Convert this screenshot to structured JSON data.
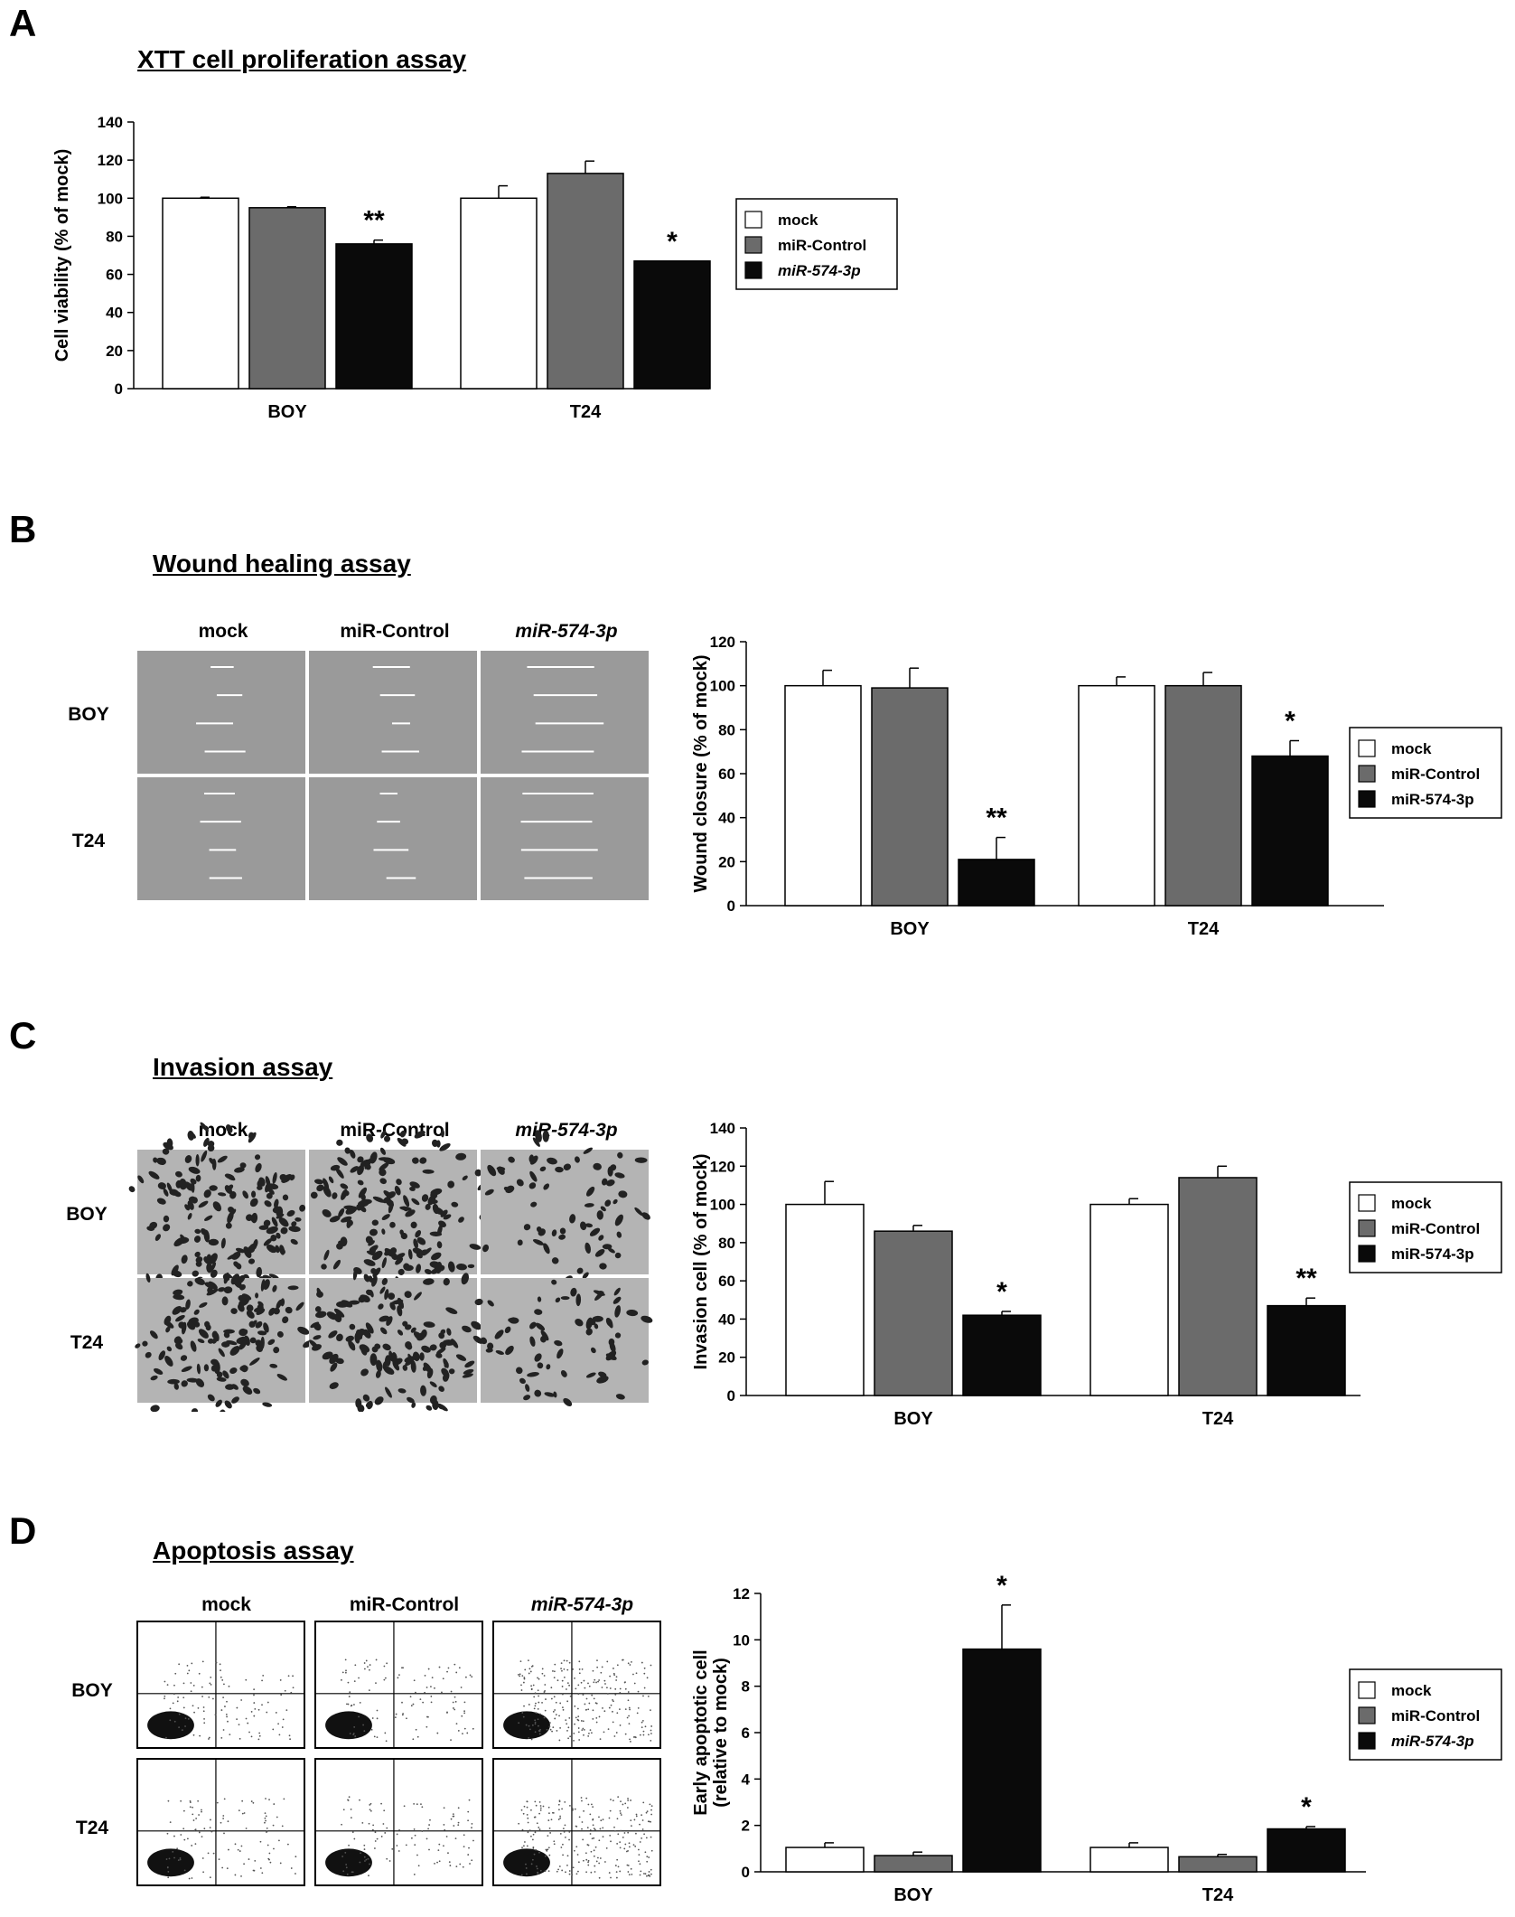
{
  "panels": [
    {
      "letter": "A",
      "title": "XTT cell proliferation assay"
    },
    {
      "letter": "B",
      "title": "Wound healing assay"
    },
    {
      "letter": "C",
      "title": "Invasion assay"
    },
    {
      "letter": "D",
      "title": "Apoptosis assay"
    }
  ],
  "image_grid": {
    "columns": [
      "mock",
      "miR-Control",
      "miR-574-3p"
    ],
    "rows": [
      "BOY",
      "T24"
    ]
  },
  "colors": {
    "mock": "#ffffff",
    "mir_control": "#6b6b6b",
    "mir_574": "#0a0a0a"
  },
  "chart_data": [
    {
      "type": "bar",
      "panel": "A",
      "ylabel": "Cell viability (% of mock)",
      "ylim": [
        0,
        140
      ],
      "yticks": [
        0,
        20,
        40,
        60,
        80,
        100,
        120,
        140
      ],
      "categories": [
        "BOY",
        "T24"
      ],
      "series": [
        {
          "name": "mock",
          "values": [
            100,
            100
          ],
          "errors": [
            0.5,
            6.5
          ]
        },
        {
          "name": "miR-Control",
          "values": [
            95,
            113
          ],
          "errors": [
            0.5,
            6.5
          ]
        },
        {
          "name": "miR-574-3p",
          "values": [
            76,
            67
          ],
          "errors": [
            2,
            0
          ]
        }
      ],
      "significance": [
        "**",
        "*"
      ],
      "legend": [
        "mock",
        "miR-Control",
        "miR-574-3p"
      ],
      "legend_position": "right"
    },
    {
      "type": "bar",
      "panel": "B",
      "ylabel": "Wound closure  (% of mock)",
      "ylim": [
        0,
        120
      ],
      "yticks": [
        0,
        20,
        40,
        60,
        80,
        100,
        120
      ],
      "categories": [
        "BOY",
        "T24"
      ],
      "series": [
        {
          "name": "mock",
          "values": [
            100,
            100
          ],
          "errors": [
            7,
            4
          ]
        },
        {
          "name": "miR-Control",
          "values": [
            99,
            100
          ],
          "errors": [
            9,
            6
          ]
        },
        {
          "name": "miR-574-3p",
          "values": [
            21,
            68
          ],
          "errors": [
            10,
            7
          ]
        }
      ],
      "significance": [
        "**",
        "*"
      ],
      "legend": [
        "mock",
        "miR-Control",
        "miR-574-3p"
      ],
      "legend_position": "right"
    },
    {
      "type": "bar",
      "panel": "C",
      "ylabel": "Invasion cell (% of mock)",
      "ylim": [
        0,
        140
      ],
      "yticks": [
        0,
        20,
        40,
        60,
        80,
        100,
        120,
        140
      ],
      "categories": [
        "BOY",
        "T24"
      ],
      "series": [
        {
          "name": "mock",
          "values": [
            100,
            100
          ],
          "errors": [
            12,
            3
          ]
        },
        {
          "name": "miR-Control",
          "values": [
            86,
            114
          ],
          "errors": [
            3,
            6
          ]
        },
        {
          "name": "miR-574-3p",
          "values": [
            42,
            47
          ],
          "errors": [
            2,
            4
          ]
        }
      ],
      "significance": [
        "*",
        "**"
      ],
      "legend": [
        "mock",
        "miR-Control",
        "miR-574-3p"
      ],
      "legend_position": "right"
    },
    {
      "type": "bar",
      "panel": "D",
      "ylabel": "Early apoptotic cell (relative to mock)",
      "ylabel_lines": [
        "Early apoptotic cell",
        "(relative to mock)"
      ],
      "ylim": [
        0,
        12
      ],
      "yticks": [
        0,
        2,
        4,
        6,
        8,
        10,
        12
      ],
      "categories": [
        "BOY",
        "T24"
      ],
      "series": [
        {
          "name": "mock",
          "values": [
            1.05,
            1.05
          ],
          "errors": [
            0.2,
            0.2
          ]
        },
        {
          "name": "miR-Control",
          "values": [
            0.7,
            0.65
          ],
          "errors": [
            0.15,
            0.1
          ]
        },
        {
          "name": "miR-574-3p",
          "values": [
            9.6,
            1.85
          ],
          "errors": [
            1.9,
            0.1
          ]
        }
      ],
      "significance": [
        "*",
        "*"
      ],
      "legend": [
        "mock",
        "miR-Control",
        "miR-574-3p"
      ],
      "legend_position": "right"
    }
  ]
}
